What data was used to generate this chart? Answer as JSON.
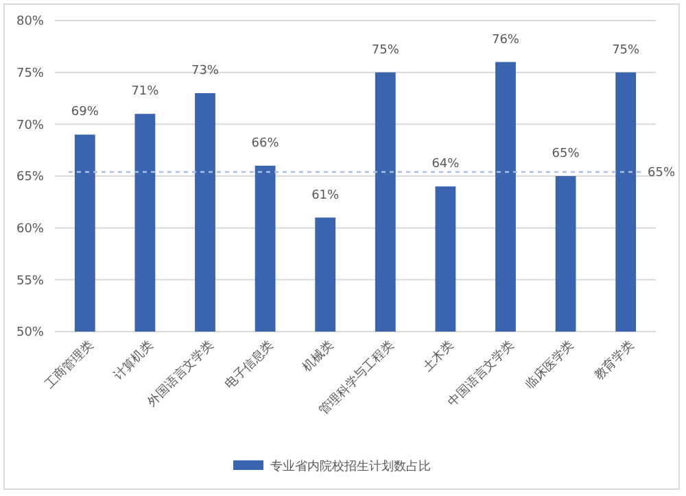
{
  "chart_data": {
    "type": "bar",
    "categories": [
      "工商管理类",
      "计算机类",
      "外国语言文学类",
      "电子信息类",
      "机械类",
      "管理科学与工程类",
      "土木类",
      "中国语言文学类",
      "临床医学类",
      "教育学类"
    ],
    "series": [
      {
        "name": "专业省内院校招生计划数占比",
        "color": "#3b64ae",
        "values": [
          69,
          71,
          73,
          66,
          61,
          75,
          64,
          76,
          65,
          75
        ],
        "value_labels": [
          "69%",
          "71%",
          "73%",
          "66%",
          "61%",
          "75%",
          "64%",
          "76%",
          "65%",
          "75%"
        ]
      }
    ],
    "ylim": [
      50,
      80
    ],
    "yticks": [
      {
        "value": 50,
        "label": "50%"
      },
      {
        "value": 55,
        "label": "55%"
      },
      {
        "value": 60,
        "label": "60%"
      },
      {
        "value": 65,
        "label": "65%"
      },
      {
        "value": 70,
        "label": "70%"
      },
      {
        "value": 75,
        "label": "75%"
      },
      {
        "value": 80,
        "label": "80%"
      }
    ],
    "ref_lines": [
      {
        "axis": "y",
        "value": 65.4,
        "label": "65%",
        "color": "#a9c0e6",
        "line_style": "dashed"
      }
    ],
    "grid": "y",
    "legend": "bottom"
  }
}
